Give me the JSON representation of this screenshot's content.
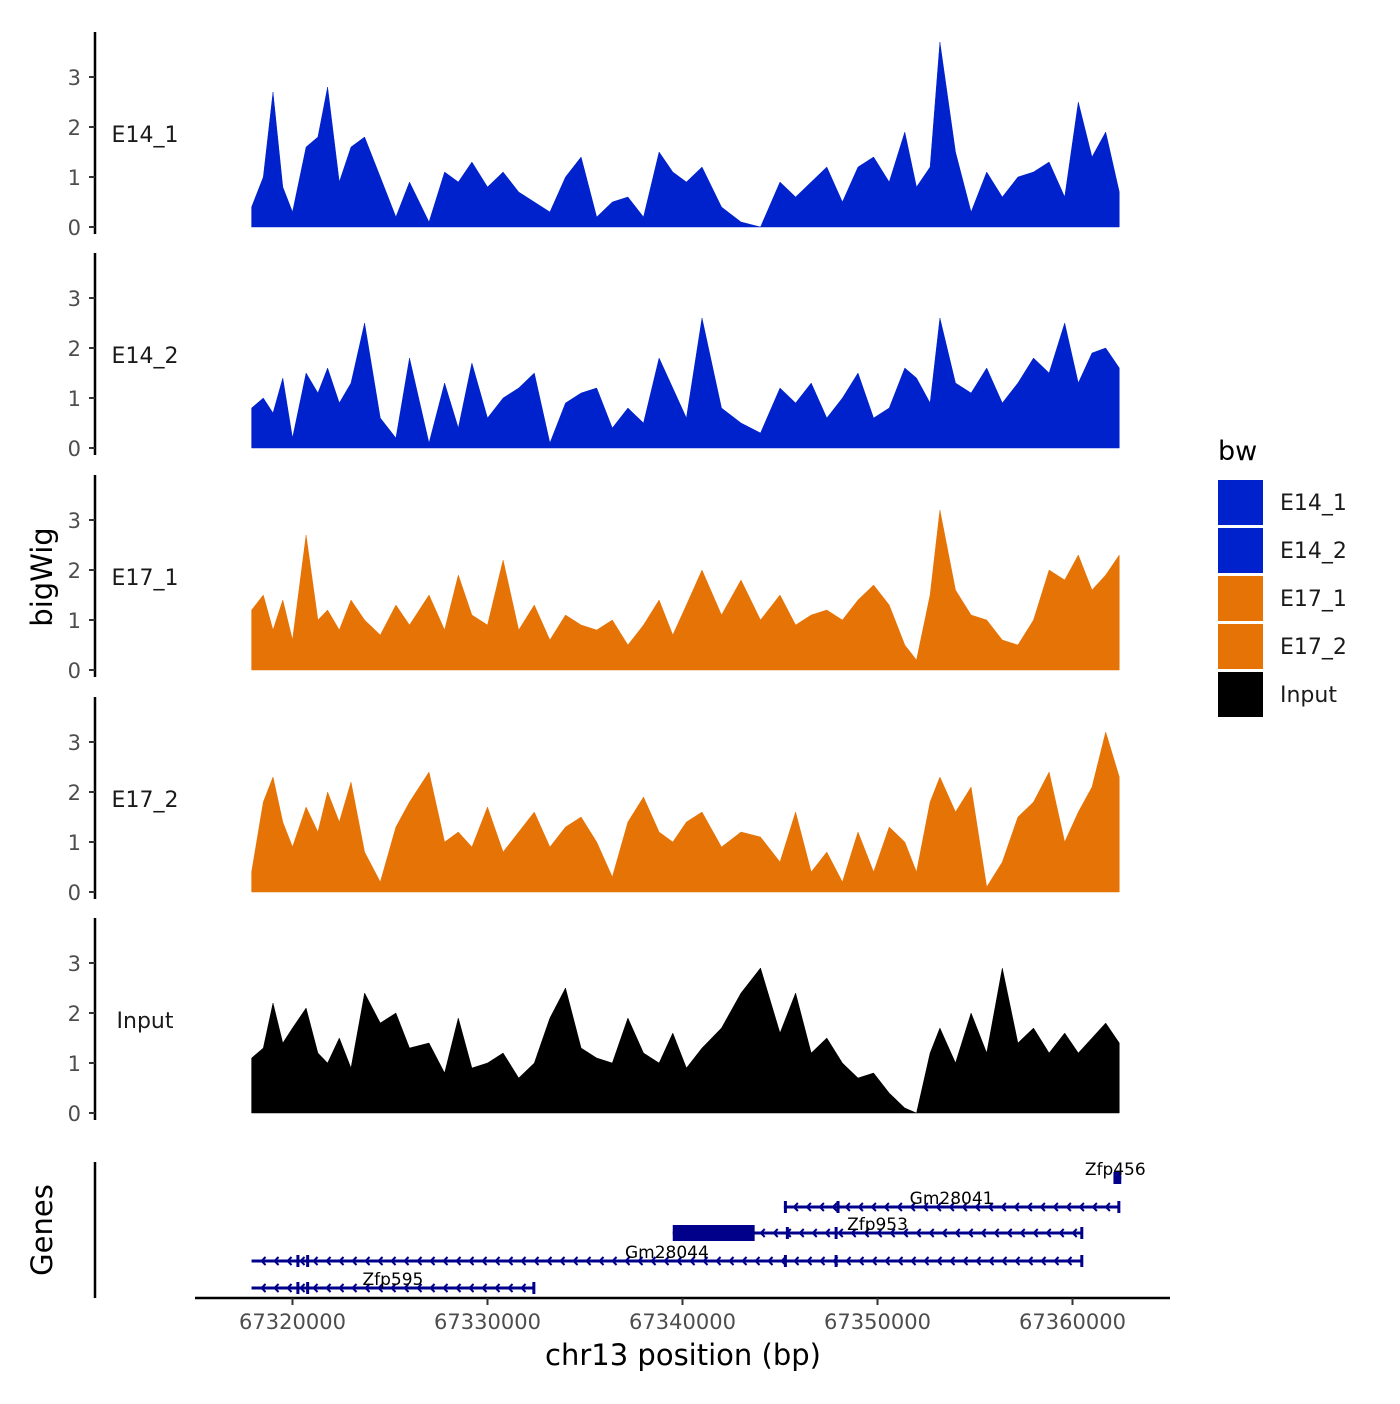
{
  "chart_data": {
    "type": "area",
    "title": "",
    "ylabel": "bigWig",
    "xlabel": "chr13 position (bp)",
    "xlim": [
      67315000,
      67365000
    ],
    "data_xrange": [
      67317900,
      67362400
    ],
    "ylim": [
      0,
      3.9
    ],
    "y_ticks": [
      "0",
      "1",
      "2",
      "3"
    ],
    "x_ticks": [
      "67320000",
      "67330000",
      "67340000",
      "67350000",
      "67360000"
    ],
    "x_tick_values": [
      67320000,
      67330000,
      67340000,
      67350000,
      67360000
    ],
    "legend": {
      "title": "bw",
      "position": "right",
      "entries": [
        {
          "label": "E14_1",
          "color": "#0022CC"
        },
        {
          "label": "E14_2",
          "color": "#0022CC"
        },
        {
          "label": "E17_1",
          "color": "#E67305"
        },
        {
          "label": "E17_2",
          "color": "#E67305"
        },
        {
          "label": "Input",
          "color": "#000000"
        }
      ]
    },
    "series": [
      {
        "name": "E14_1",
        "color": "#0022CC",
        "x": [
          67317900,
          67318500,
          67319000,
          67319500,
          67320000,
          67320700,
          67321300,
          67321800,
          67322400,
          67323000,
          67323700,
          67324500,
          67325300,
          67326000,
          67327000,
          67327800,
          67328500,
          67329200,
          67330000,
          67330800,
          67331600,
          67332400,
          67333200,
          67334000,
          67334800,
          67335600,
          67336400,
          67337200,
          67338000,
          67338800,
          67339500,
          67340200,
          67341000,
          67342000,
          67343000,
          67344000,
          67345000,
          67345800,
          67346600,
          67347400,
          67348200,
          67349000,
          67349800,
          67350600,
          67351400,
          67352000,
          67352700,
          67353200,
          67354000,
          67354800,
          67355600,
          67356400,
          67357200,
          67358000,
          67358800,
          67359600,
          67360300,
          67361000,
          67361700,
          67362400
        ],
        "values": [
          0.4,
          1.0,
          2.7,
          0.8,
          0.3,
          1.6,
          1.8,
          2.8,
          0.9,
          1.6,
          1.8,
          1.0,
          0.2,
          0.9,
          0.1,
          1.1,
          0.9,
          1.3,
          0.8,
          1.1,
          0.7,
          0.5,
          0.3,
          1.0,
          1.4,
          0.2,
          0.5,
          0.6,
          0.2,
          1.5,
          1.1,
          0.9,
          1.2,
          0.4,
          0.1,
          0.0,
          0.9,
          0.6,
          0.9,
          1.2,
          0.5,
          1.2,
          1.4,
          0.9,
          1.9,
          0.8,
          1.2,
          3.7,
          1.5,
          0.3,
          1.1,
          0.6,
          1.0,
          1.1,
          1.3,
          0.6,
          2.5,
          1.4,
          1.9,
          0.7
        ]
      },
      {
        "name": "E14_2",
        "color": "#0022CC",
        "x": [
          67317900,
          67318500,
          67319000,
          67319500,
          67320000,
          67320700,
          67321300,
          67321800,
          67322400,
          67323000,
          67323700,
          67324500,
          67325300,
          67326000,
          67327000,
          67327800,
          67328500,
          67329200,
          67330000,
          67330800,
          67331600,
          67332400,
          67333200,
          67334000,
          67334800,
          67335600,
          67336400,
          67337200,
          67338000,
          67338800,
          67339500,
          67340200,
          67341000,
          67342000,
          67343000,
          67344000,
          67345000,
          67345800,
          67346600,
          67347400,
          67348200,
          67349000,
          67349800,
          67350600,
          67351400,
          67352000,
          67352700,
          67353200,
          67354000,
          67354800,
          67355600,
          67356400,
          67357200,
          67358000,
          67358800,
          67359600,
          67360300,
          67361000,
          67361700,
          67362400
        ],
        "values": [
          0.8,
          1.0,
          0.7,
          1.4,
          0.2,
          1.5,
          1.1,
          1.6,
          0.9,
          1.3,
          2.5,
          0.6,
          0.2,
          1.8,
          0.1,
          1.3,
          0.4,
          1.7,
          0.6,
          1.0,
          1.2,
          1.5,
          0.1,
          0.9,
          1.1,
          1.2,
          0.4,
          0.8,
          0.5,
          1.8,
          1.2,
          0.6,
          2.6,
          0.8,
          0.5,
          0.3,
          1.2,
          0.9,
          1.3,
          0.6,
          1.0,
          1.5,
          0.6,
          0.8,
          1.6,
          1.4,
          0.9,
          2.6,
          1.3,
          1.1,
          1.6,
          0.9,
          1.3,
          1.8,
          1.5,
          2.5,
          1.3,
          1.9,
          2.0,
          1.6
        ]
      },
      {
        "name": "E17_1",
        "color": "#E67305",
        "x": [
          67317900,
          67318500,
          67319000,
          67319500,
          67320000,
          67320700,
          67321300,
          67321800,
          67322400,
          67323000,
          67323700,
          67324500,
          67325300,
          67326000,
          67327000,
          67327800,
          67328500,
          67329200,
          67330000,
          67330800,
          67331600,
          67332400,
          67333200,
          67334000,
          67334800,
          67335600,
          67336400,
          67337200,
          67338000,
          67338800,
          67339500,
          67340200,
          67341000,
          67342000,
          67343000,
          67344000,
          67345000,
          67345800,
          67346600,
          67347400,
          67348200,
          67349000,
          67349800,
          67350600,
          67351400,
          67352000,
          67352700,
          67353200,
          67354000,
          67354800,
          67355600,
          67356400,
          67357200,
          67358000,
          67358800,
          67359600,
          67360300,
          67361000,
          67361700,
          67362400
        ],
        "values": [
          1.2,
          1.5,
          0.8,
          1.4,
          0.6,
          2.7,
          1.0,
          1.2,
          0.8,
          1.4,
          1.0,
          0.7,
          1.3,
          0.9,
          1.5,
          0.8,
          1.9,
          1.1,
          0.9,
          2.2,
          0.8,
          1.3,
          0.6,
          1.1,
          0.9,
          0.8,
          1.0,
          0.5,
          0.9,
          1.4,
          0.7,
          1.3,
          2.0,
          1.1,
          1.8,
          1.0,
          1.5,
          0.9,
          1.1,
          1.2,
          1.0,
          1.4,
          1.7,
          1.3,
          0.5,
          0.2,
          1.5,
          3.2,
          1.6,
          1.1,
          1.0,
          0.6,
          0.5,
          1.0,
          2.0,
          1.8,
          2.3,
          1.6,
          1.9,
          2.3
        ]
      },
      {
        "name": "E17_2",
        "color": "#E67305",
        "x": [
          67317900,
          67318500,
          67319000,
          67319500,
          67320000,
          67320700,
          67321300,
          67321800,
          67322400,
          67323000,
          67323700,
          67324500,
          67325300,
          67326000,
          67327000,
          67327800,
          67328500,
          67329200,
          67330000,
          67330800,
          67331600,
          67332400,
          67333200,
          67334000,
          67334800,
          67335600,
          67336400,
          67337200,
          67338000,
          67338800,
          67339500,
          67340200,
          67341000,
          67342000,
          67343000,
          67344000,
          67345000,
          67345800,
          67346600,
          67347400,
          67348200,
          67349000,
          67349800,
          67350600,
          67351400,
          67352000,
          67352700,
          67353200,
          67354000,
          67354800,
          67355600,
          67356400,
          67357200,
          67358000,
          67358800,
          67359600,
          67360300,
          67361000,
          67361700,
          67362400
        ],
        "values": [
          0.4,
          1.8,
          2.3,
          1.4,
          0.9,
          1.7,
          1.2,
          2.0,
          1.4,
          2.2,
          0.8,
          0.2,
          1.3,
          1.8,
          2.4,
          1.0,
          1.2,
          0.9,
          1.7,
          0.8,
          1.2,
          1.6,
          0.9,
          1.3,
          1.5,
          1.0,
          0.3,
          1.4,
          1.9,
          1.2,
          1.0,
          1.4,
          1.6,
          0.9,
          1.2,
          1.1,
          0.6,
          1.6,
          0.4,
          0.8,
          0.2,
          1.2,
          0.4,
          1.3,
          1.0,
          0.4,
          1.8,
          2.3,
          1.6,
          2.1,
          0.1,
          0.6,
          1.5,
          1.8,
          2.4,
          1.0,
          1.6,
          2.1,
          3.2,
          2.3
        ]
      },
      {
        "name": "Input",
        "color": "#000000",
        "x": [
          67317900,
          67318500,
          67319000,
          67319500,
          67320000,
          67320700,
          67321300,
          67321800,
          67322400,
          67323000,
          67323700,
          67324500,
          67325300,
          67326000,
          67327000,
          67327800,
          67328500,
          67329200,
          67330000,
          67330800,
          67331600,
          67332400,
          67333200,
          67334000,
          67334800,
          67335600,
          67336400,
          67337200,
          67338000,
          67338800,
          67339500,
          67340200,
          67341000,
          67342000,
          67343000,
          67344000,
          67345000,
          67345800,
          67346600,
          67347400,
          67348200,
          67349000,
          67349800,
          67350600,
          67351400,
          67352000,
          67352700,
          67353200,
          67354000,
          67354800,
          67355600,
          67356400,
          67357200,
          67358000,
          67358800,
          67359600,
          67360300,
          67361000,
          67361700,
          67362400
        ],
        "values": [
          1.1,
          1.3,
          2.2,
          1.4,
          1.7,
          2.1,
          1.2,
          1.0,
          1.5,
          0.9,
          2.4,
          1.8,
          2.0,
          1.3,
          1.4,
          0.8,
          1.9,
          0.9,
          1.0,
          1.2,
          0.7,
          1.0,
          1.9,
          2.5,
          1.3,
          1.1,
          1.0,
          1.9,
          1.2,
          1.0,
          1.6,
          0.9,
          1.3,
          1.7,
          2.4,
          2.9,
          1.6,
          2.4,
          1.2,
          1.5,
          1.0,
          0.7,
          0.8,
          0.4,
          0.1,
          0.0,
          1.2,
          1.7,
          1.0,
          2.0,
          1.2,
          2.9,
          1.4,
          1.7,
          1.2,
          1.6,
          1.2,
          1.5,
          1.8,
          1.4
        ]
      }
    ],
    "genes_track": {
      "label": "Genes",
      "color": "#00008B",
      "genes": [
        {
          "name": "Zfp456",
          "start": 67362100,
          "end": 67362500,
          "row": 0,
          "strand": "-",
          "exons": [
            [
              67362100,
              67362500
            ]
          ]
        },
        {
          "name": "Gm28041",
          "start": 67345200,
          "end": 67362400,
          "row": 1,
          "strand": "-",
          "exons": [
            [
              67345200,
              67345300
            ],
            [
              67347900,
              67348000
            ],
            [
              67362300,
              67362400
            ]
          ]
        },
        {
          "name": "Zfp953",
          "start": 67339500,
          "end": 67360500,
          "row": 2,
          "strand": "-",
          "exons": [
            [
              67339500,
              67343700
            ],
            [
              67345300,
              67345400
            ],
            [
              67347800,
              67347900
            ],
            [
              67360400,
              67360500
            ]
          ]
        },
        {
          "name": "Gm28044",
          "start": 67317900,
          "end": 67360500,
          "row": 3,
          "strand": "-",
          "exons": [
            [
              67320200,
              67320300
            ],
            [
              67320700,
              67320800
            ],
            [
              67345200,
              67345300
            ],
            [
              67347800,
              67347900
            ],
            [
              67360400,
              67360500
            ]
          ]
        },
        {
          "name": "Zfp595",
          "start": 67317900,
          "end": 67332400,
          "row": 4,
          "strand": "-",
          "exons": [
            [
              67320200,
              67320300
            ],
            [
              67320700,
              67320800
            ],
            [
              67332300,
              67332400
            ]
          ]
        }
      ]
    }
  }
}
